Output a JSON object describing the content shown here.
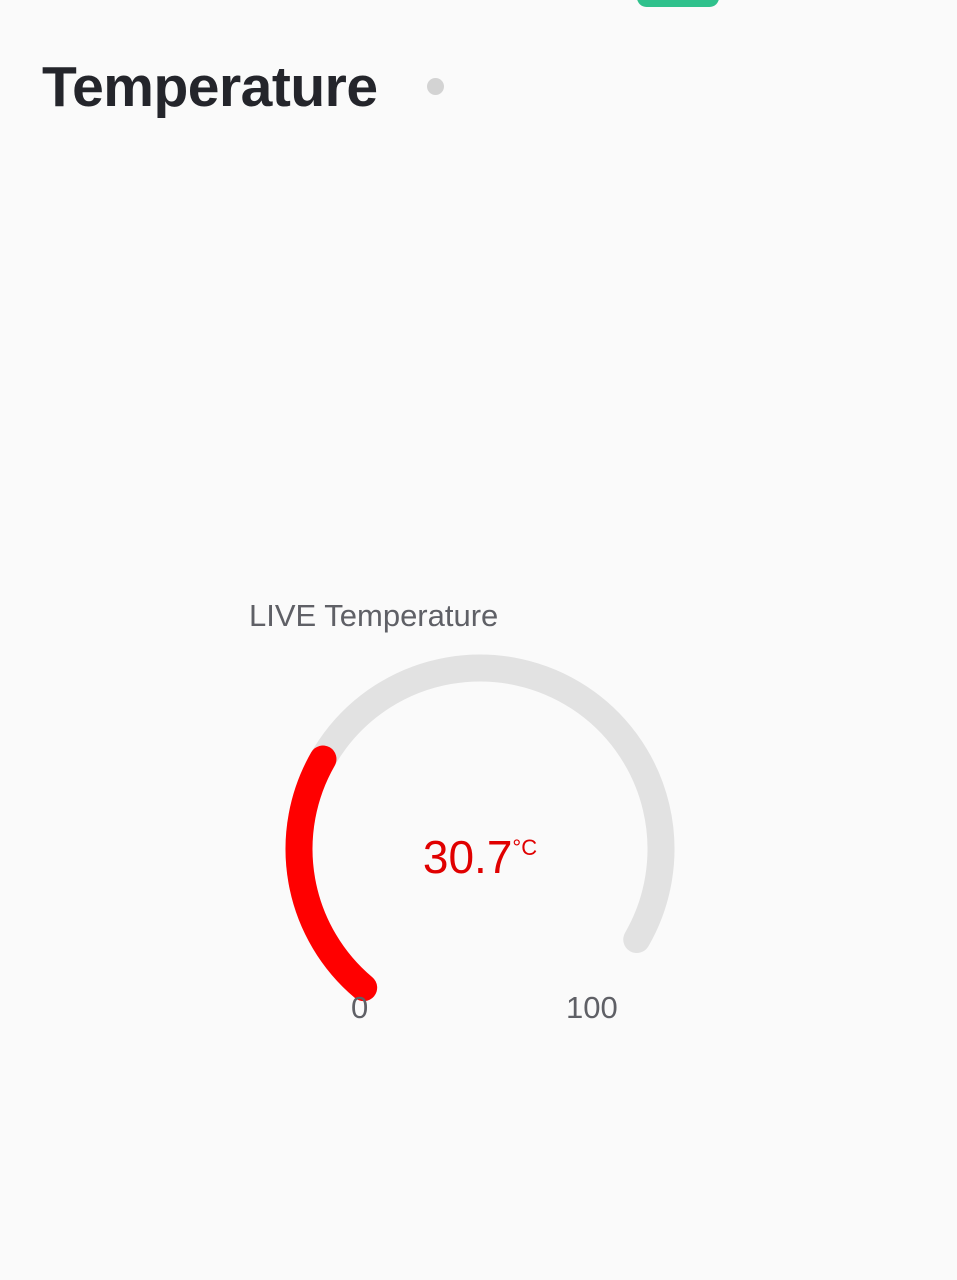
{
  "header": {
    "title": "Temperature"
  },
  "gauge": {
    "title": "LIVE Temperature",
    "value": "30.7",
    "unit": "°C",
    "min": "0",
    "max": "100",
    "level": 30.7,
    "range": [
      0,
      100
    ],
    "colors": {
      "fill": "#ff0000",
      "track": "#e2e2e2",
      "value_text": "#e00000"
    }
  },
  "colors": {
    "accent_pill": "#2fc18c",
    "status_dot": "#d3d3d3",
    "title": "#24252b"
  }
}
